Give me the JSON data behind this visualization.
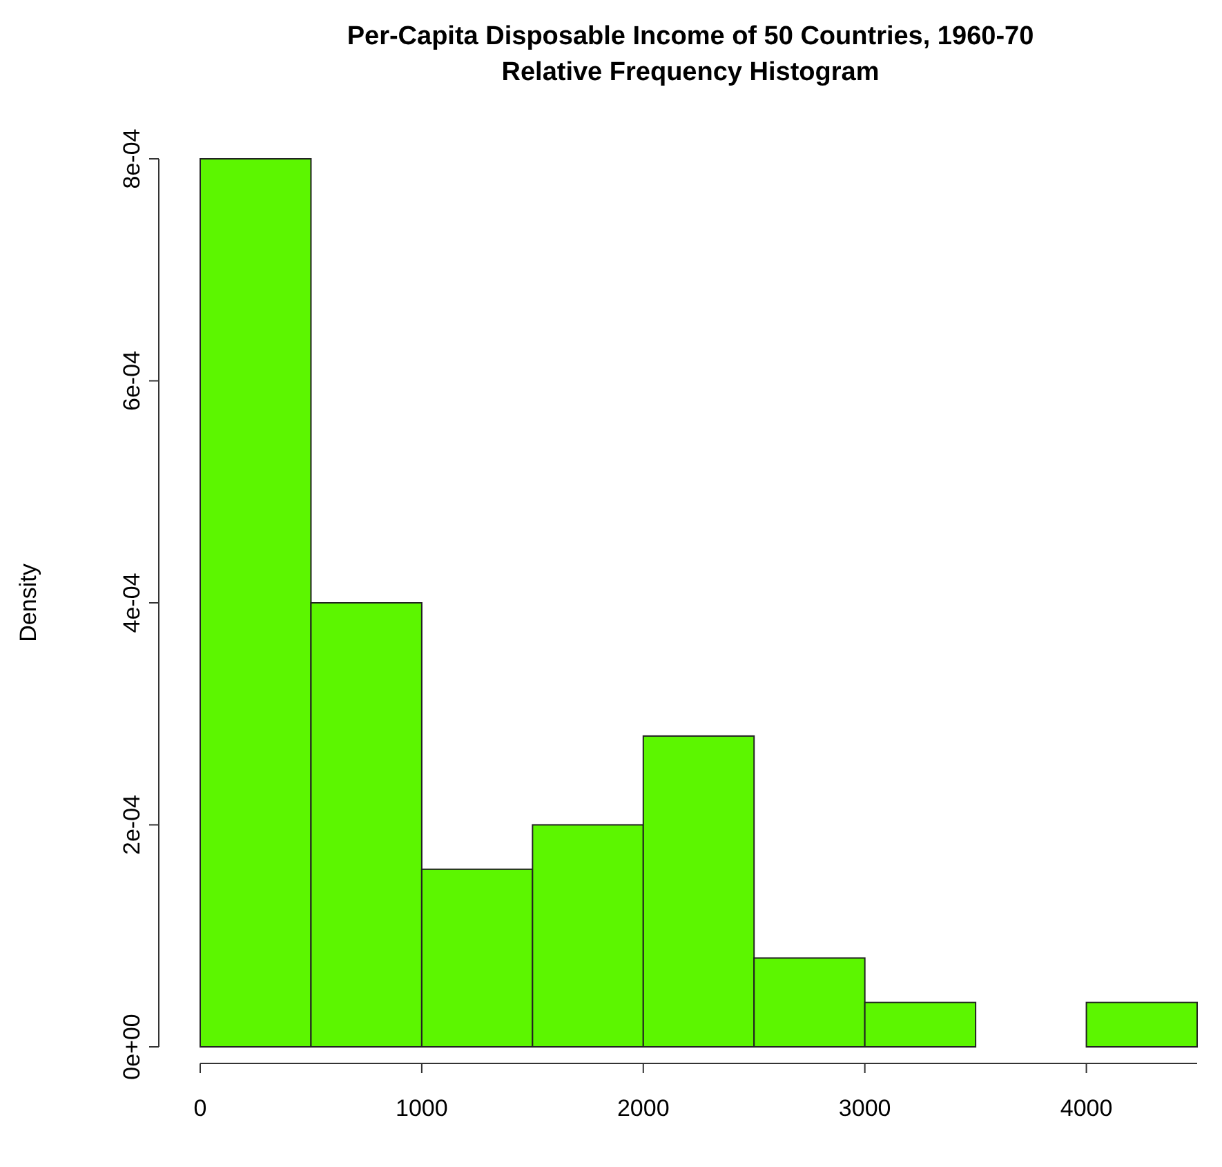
{
  "chart_data": {
    "type": "histogram",
    "title": "Per-Capita Disposable Income of 50 Countries, 1960-70",
    "subtitle": "Relative Frequency Histogram",
    "ylabel": "Density",
    "bins": [
      0,
      500,
      1000,
      1500,
      2000,
      2500,
      3000,
      3500,
      4000,
      4500
    ],
    "values": [
      0.0008,
      0.0004,
      0.00016,
      0.0002,
      0.00028,
      8e-05,
      4e-05,
      0,
      4e-05
    ],
    "color": "#5cf600",
    "xlim": [
      0,
      4500
    ],
    "xticks": [
      0,
      1000,
      2000,
      3000,
      4000
    ],
    "ylim": [
      0,
      0.0008
    ],
    "yticks": [
      {
        "value": 0,
        "label": "0e+00"
      },
      {
        "value": 0.0002,
        "label": "2e-04"
      },
      {
        "value": 0.0004,
        "label": "4e-04"
      },
      {
        "value": 0.0006,
        "label": "6e-04"
      },
      {
        "value": 0.0008,
        "label": "8e-04"
      }
    ],
    "grid": false
  }
}
